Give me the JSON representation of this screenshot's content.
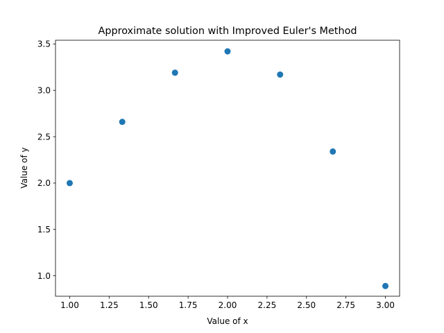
{
  "chart_data": {
    "type": "scatter",
    "title": "Approximate solution with Improved Euler's Method",
    "xlabel": "Value of x",
    "ylabel": "Value of y",
    "xlim": [
      0.91,
      3.09
    ],
    "ylim": [
      0.78,
      3.54
    ],
    "xticks": [
      1.0,
      1.25,
      1.5,
      1.75,
      2.0,
      2.25,
      2.5,
      2.75,
      3.0
    ],
    "xtick_labels": [
      "1.00",
      "1.25",
      "1.50",
      "1.75",
      "2.00",
      "2.25",
      "2.50",
      "2.75",
      "3.00"
    ],
    "yticks": [
      1.0,
      1.5,
      2.0,
      2.5,
      3.0,
      3.5
    ],
    "ytick_labels": [
      "1.0",
      "1.5",
      "2.0",
      "2.5",
      "3.0",
      "3.5"
    ],
    "grid": false,
    "marker_color": "#1f77b4",
    "series": [
      {
        "x": [
          1.0,
          1.333,
          1.667,
          2.0,
          2.333,
          2.667,
          3.0
        ],
        "y": [
          2.0,
          2.66,
          3.19,
          3.42,
          3.17,
          2.34,
          0.89
        ]
      }
    ]
  }
}
